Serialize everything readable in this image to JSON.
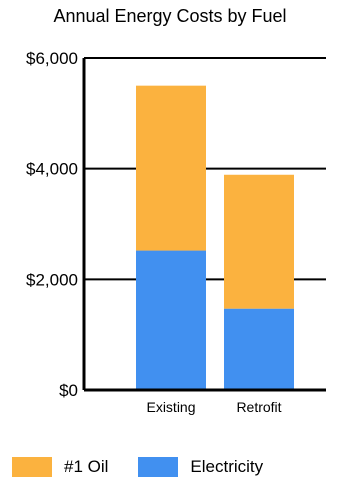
{
  "chart_data": {
    "type": "bar",
    "stacked": true,
    "title": "Annual Energy Costs by Fuel",
    "xlabel": "",
    "ylabel": "",
    "categories": [
      "Existing",
      "Retrofit"
    ],
    "series": [
      {
        "name": "Electricity",
        "values": [
          2520,
          1470
        ],
        "color": "#4190f0"
      },
      {
        "name": "#1 Oil",
        "values": [
          2980,
          2420
        ],
        "color": "#fbb23f"
      }
    ],
    "ylim": [
      0,
      6000
    ],
    "yticks": [
      0,
      2000,
      4000,
      6000
    ],
    "ytick_labels": [
      "$0",
      "$2,000",
      "$4,000",
      "$6,000"
    ],
    "grid": true,
    "legend": {
      "placement": "bottom",
      "entries": [
        {
          "name": "#1 Oil",
          "color": "#fbb23f"
        },
        {
          "name": "Electricity",
          "color": "#4190f0"
        }
      ]
    }
  }
}
